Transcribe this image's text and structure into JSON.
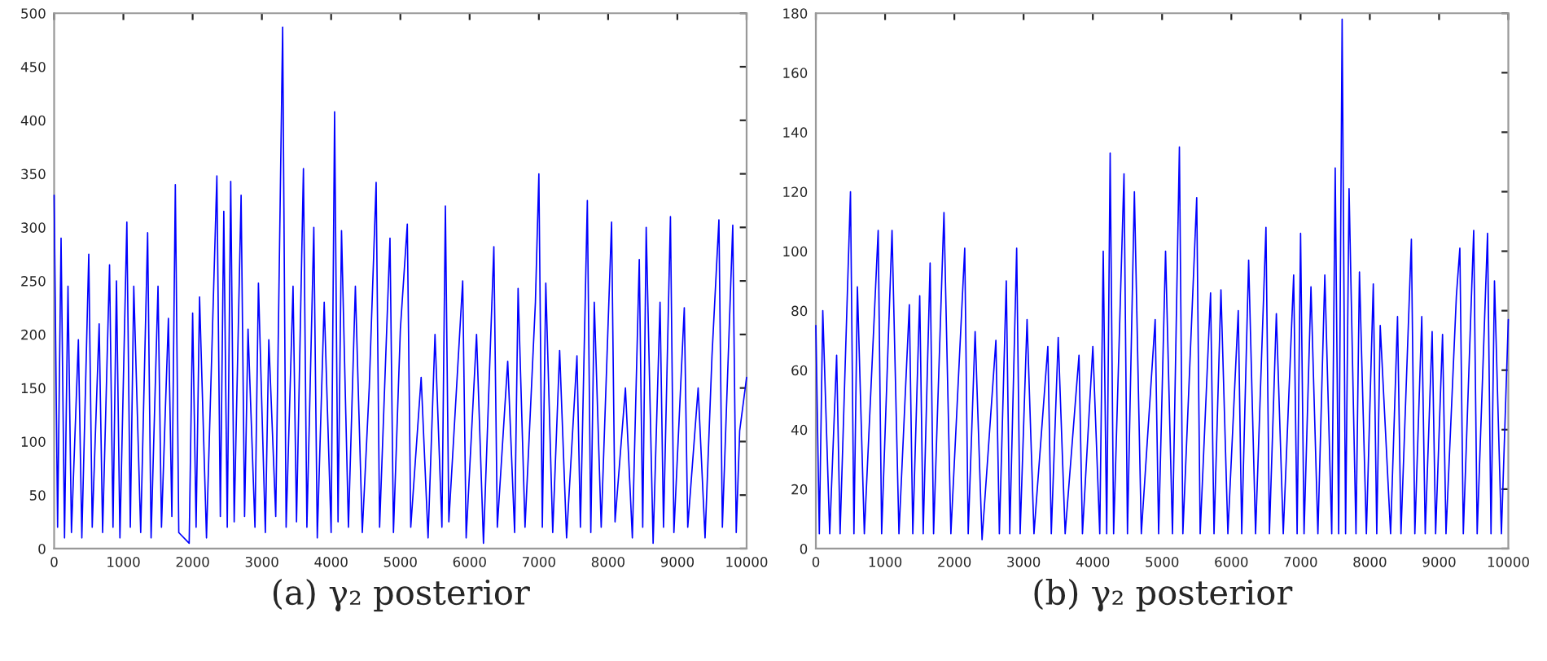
{
  "chart_data": [
    {
      "type": "line",
      "xlabel": "(a) γ₂ posterior",
      "xlim": [
        0,
        10000
      ],
      "xticks": [
        0,
        1000,
        2000,
        3000,
        4000,
        5000,
        6000,
        7000,
        8000,
        9000,
        10000
      ],
      "ylim": [
        0,
        500
      ],
      "yticks": [
        0,
        50,
        100,
        150,
        200,
        250,
        300,
        350,
        400,
        450,
        500
      ],
      "grid": false,
      "legend": false,
      "series": [
        {
          "color": "#0000ff",
          "x": [
            0,
            50,
            100,
            150,
            200,
            250,
            350,
            400,
            500,
            550,
            650,
            700,
            800,
            850,
            900,
            950,
            1050,
            1100,
            1150,
            1250,
            1350,
            1400,
            1500,
            1550,
            1650,
            1700,
            1750,
            1800,
            1950,
            2000,
            2050,
            2100,
            2200,
            2350,
            2400,
            2450,
            2500,
            2550,
            2600,
            2700,
            2750,
            2800,
            2900,
            2950,
            3050,
            3100,
            3200,
            3300,
            3350,
            3450,
            3500,
            3600,
            3650,
            3750,
            3800,
            3900,
            4000,
            4050,
            4100,
            4150,
            4250,
            4350,
            4450,
            4550,
            4650,
            4700,
            4850,
            4900,
            5000,
            5100,
            5150,
            5300,
            5400,
            5500,
            5600,
            5650,
            5700,
            5900,
            5950,
            6100,
            6200,
            6350,
            6400,
            6550,
            6650,
            6700,
            6800,
            6950,
            7000,
            7050,
            7100,
            7200,
            7300,
            7400,
            7550,
            7600,
            7700,
            7750,
            7800,
            7900,
            8050,
            8100,
            8250,
            8350,
            8450,
            8500,
            8550,
            8650,
            8750,
            8800,
            8900,
            8950,
            9100,
            9150,
            9300,
            9400,
            9500,
            9600,
            9650,
            9800,
            9850,
            9900,
            10000
          ],
          "values": [
            330,
            20,
            290,
            10,
            245,
            15,
            195,
            10,
            275,
            20,
            210,
            15,
            265,
            20,
            250,
            10,
            305,
            20,
            245,
            15,
            295,
            10,
            245,
            20,
            215,
            30,
            340,
            15,
            5,
            220,
            20,
            235,
            10,
            348,
            30,
            315,
            20,
            343,
            25,
            330,
            30,
            205,
            20,
            248,
            15,
            195,
            30,
            487,
            20,
            245,
            25,
            355,
            20,
            300,
            10,
            230,
            15,
            408,
            25,
            297,
            20,
            245,
            15,
            150,
            342,
            20,
            290,
            15,
            205,
            303,
            20,
            160,
            10,
            200,
            20,
            320,
            25,
            250,
            10,
            200,
            5,
            282,
            20,
            175,
            15,
            243,
            20,
            230,
            350,
            20,
            248,
            15,
            185,
            10,
            180,
            20,
            325,
            15,
            230,
            20,
            305,
            25,
            150,
            10,
            270,
            20,
            300,
            5,
            230,
            20,
            310,
            15,
            225,
            20,
            150,
            10,
            180,
            307,
            20,
            302,
            15,
            110,
            160
          ]
        }
      ]
    },
    {
      "type": "line",
      "xlabel": "(b) γ₂ posterior",
      "xlim": [
        0,
        10000
      ],
      "xticks": [
        0,
        1000,
        2000,
        3000,
        4000,
        5000,
        6000,
        7000,
        8000,
        9000,
        10000
      ],
      "ylim": [
        0,
        180
      ],
      "yticks": [
        0,
        20,
        40,
        60,
        80,
        100,
        120,
        140,
        160,
        180
      ],
      "grid": false,
      "legend": false,
      "series": [
        {
          "color": "#0000ff",
          "x": [
            0,
            50,
            100,
            200,
            300,
            350,
            450,
            500,
            550,
            600,
            700,
            900,
            950,
            1100,
            1200,
            1350,
            1400,
            1500,
            1550,
            1650,
            1700,
            1850,
            1950,
            2150,
            2200,
            2300,
            2400,
            2600,
            2650,
            2750,
            2800,
            2900,
            2950,
            3050,
            3150,
            3350,
            3400,
            3500,
            3600,
            3800,
            3850,
            4000,
            4100,
            4150,
            4200,
            4250,
            4300,
            4450,
            4500,
            4600,
            4700,
            4900,
            4950,
            5050,
            5150,
            5250,
            5300,
            5500,
            5550,
            5700,
            5750,
            5850,
            5950,
            6100,
            6150,
            6250,
            6350,
            6500,
            6550,
            6650,
            6750,
            6900,
            6950,
            7000,
            7050,
            7150,
            7250,
            7350,
            7450,
            7500,
            7550,
            7600,
            7650,
            7700,
            7800,
            7850,
            7950,
            8050,
            8100,
            8150,
            8300,
            8400,
            8450,
            8600,
            8650,
            8750,
            8800,
            8900,
            8950,
            9050,
            9100,
            9250,
            9300,
            9350,
            9500,
            9550,
            9700,
            9750,
            9800,
            9900,
            10000
          ],
          "values": [
            75,
            5,
            80,
            5,
            65,
            5,
            82,
            120,
            5,
            88,
            5,
            107,
            5,
            107,
            5,
            82,
            5,
            85,
            5,
            96,
            5,
            113,
            5,
            101,
            5,
            73,
            3,
            70,
            5,
            90,
            5,
            101,
            5,
            77,
            5,
            68,
            5,
            71,
            5,
            65,
            5,
            68,
            5,
            100,
            5,
            133,
            5,
            126,
            5,
            120,
            5,
            77,
            5,
            100,
            5,
            135,
            5,
            118,
            5,
            86,
            5,
            87,
            5,
            80,
            5,
            97,
            5,
            108,
            5,
            79,
            5,
            92,
            5,
            106,
            5,
            88,
            5,
            92,
            5,
            128,
            5,
            178,
            5,
            121,
            5,
            93,
            5,
            89,
            5,
            75,
            5,
            78,
            5,
            104,
            5,
            78,
            5,
            73,
            5,
            72,
            5,
            85,
            101,
            5,
            107,
            5,
            106,
            5,
            90,
            5,
            77
          ]
        }
      ]
    }
  ]
}
